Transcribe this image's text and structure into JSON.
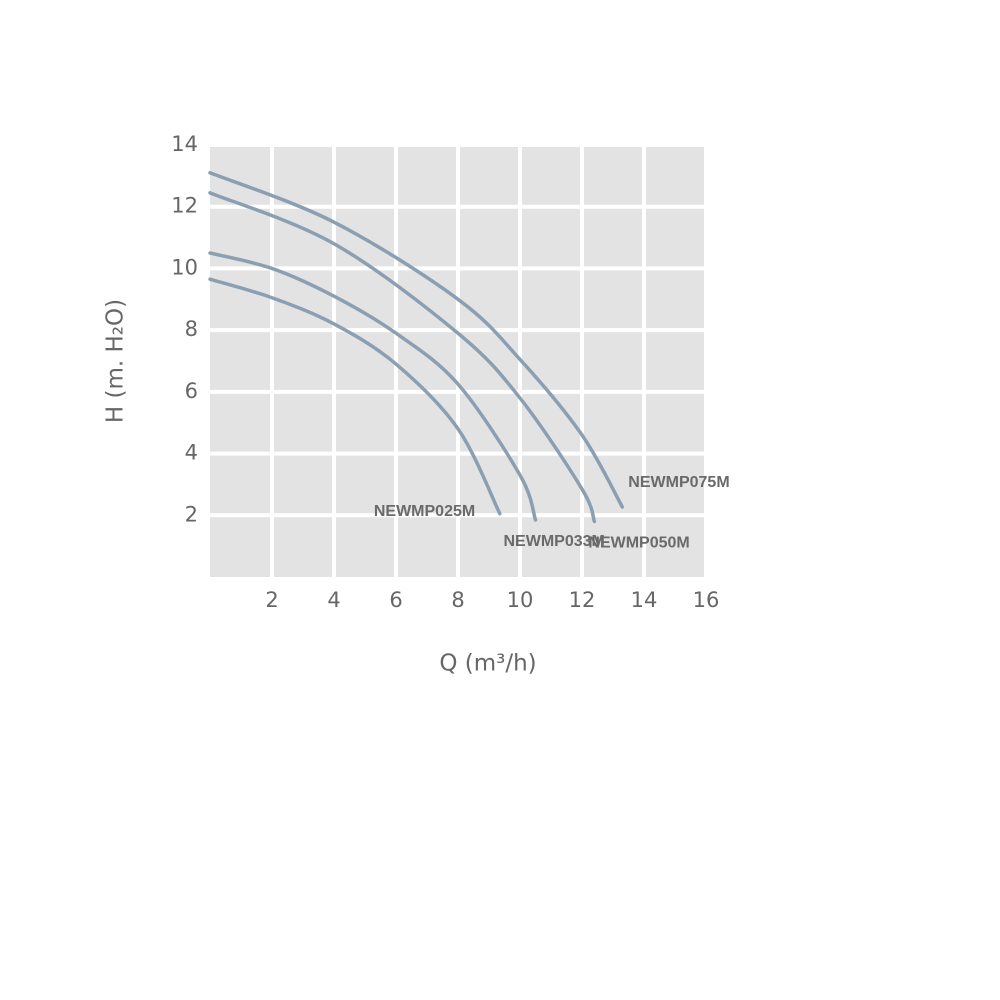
{
  "chart_data": {
    "type": "line",
    "xlabel": "Q (m³/h)",
    "ylabel": "H (m. H₂O)",
    "xlim": [
      0,
      16
    ],
    "ylim": [
      0,
      14
    ],
    "xticks": [
      2,
      4,
      6,
      8,
      10,
      12,
      14,
      16
    ],
    "yticks": [
      2,
      4,
      6,
      8,
      10,
      12,
      14
    ],
    "grid": true,
    "series": [
      {
        "name": "NEWMP025M",
        "color": "#8aa0b2",
        "x": [
          0,
          2,
          4,
          6,
          8,
          9.35
        ],
        "values": [
          9.65,
          9.05,
          8.2,
          6.9,
          4.8,
          2.05
        ]
      },
      {
        "name": "NEWMP033M",
        "color": "#8aa0b2",
        "x": [
          0,
          2,
          4,
          6,
          8,
          10,
          10.5
        ],
        "values": [
          10.5,
          10.0,
          9.1,
          7.9,
          6.25,
          3.3,
          1.85
        ]
      },
      {
        "name": "NEWMP050M",
        "color": "#8aa0b2",
        "x": [
          0,
          4,
          8,
          10,
          12,
          12.4
        ],
        "values": [
          12.45,
          10.8,
          7.9,
          5.8,
          2.85,
          1.8
        ]
      },
      {
        "name": "NEWMP075M",
        "color": "#8aa0b2",
        "x": [
          0,
          4,
          8,
          10,
          12,
          13.3
        ],
        "values": [
          13.1,
          11.5,
          9.0,
          7.05,
          4.6,
          2.27
        ]
      }
    ]
  }
}
